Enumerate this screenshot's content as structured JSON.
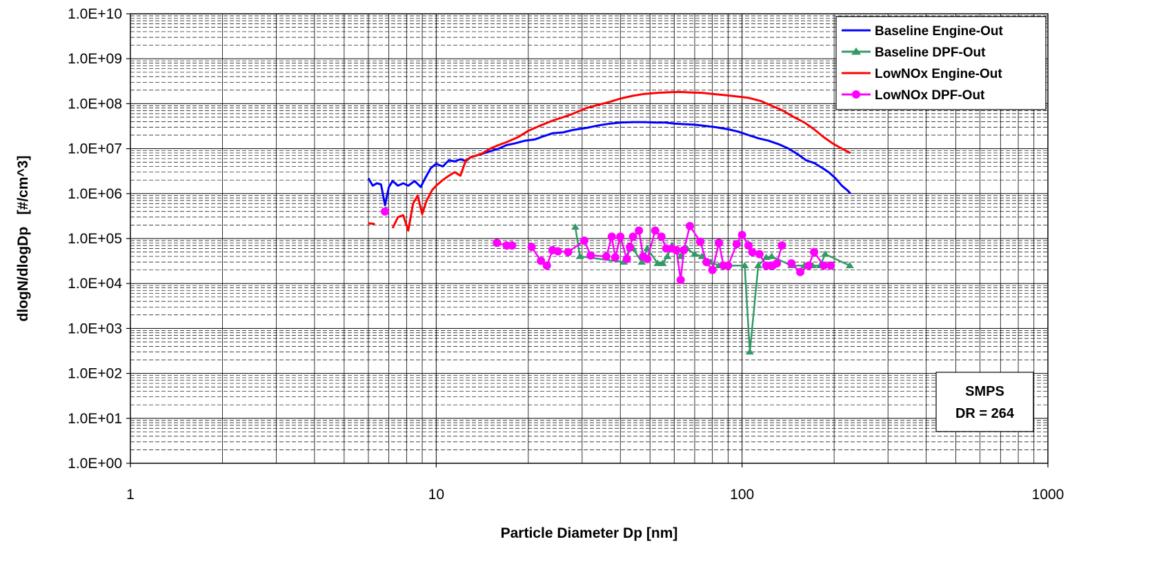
{
  "chart_data": {
    "type": "line",
    "x_scale": "log",
    "y_scale": "log",
    "xlabel": "Particle Diameter Dp [nm]",
    "ylabel": "dlogN/dlogDp   [#/cm^3]",
    "xlim": [
      1,
      1000
    ],
    "ylim": [
      1,
      10000000000
    ],
    "x_ticks": [
      1,
      10,
      100,
      1000
    ],
    "x_tick_labels": [
      "1",
      "10",
      "100",
      "1000"
    ],
    "y_ticks": [
      1,
      10,
      100,
      1000,
      10000,
      100000,
      1000000,
      10000000,
      100000000,
      1000000000,
      10000000000
    ],
    "y_tick_labels": [
      "1.0E+00",
      "1.0E+01",
      "1.0E+02",
      "1.0E+03",
      "1.0E+04",
      "1.0E+05",
      "1.0E+06",
      "1.0E+07",
      "1.0E+08",
      "1.0E+09",
      "1.0E+10"
    ],
    "grid": {
      "major": true,
      "minor_x": true,
      "minor_y_dashed": true
    },
    "legend": {
      "placement": "top-right"
    },
    "annotation": {
      "lines": [
        "SMPS",
        "DR = 264"
      ],
      "placement": "bottom-right"
    },
    "series": [
      {
        "name": "Baseline Engine-Out",
        "color": "#0000ff",
        "marker": "none",
        "points": [
          [
            6.0,
            2200000
          ],
          [
            6.2,
            1500000
          ],
          [
            6.4,
            1700000
          ],
          [
            6.6,
            1600000
          ],
          [
            6.8,
            550000
          ],
          [
            7.0,
            1400000
          ],
          [
            7.2,
            1900000
          ],
          [
            7.5,
            1500000
          ],
          [
            7.8,
            1700000
          ],
          [
            8.1,
            1500000
          ],
          [
            8.5,
            1900000
          ],
          [
            8.9,
            1400000
          ],
          [
            9.2,
            2200000
          ],
          [
            9.6,
            3700000
          ],
          [
            10.0,
            4600000
          ],
          [
            10.5,
            4000000
          ],
          [
            11.0,
            5500000
          ],
          [
            11.5,
            5200000
          ],
          [
            12.0,
            5800000
          ],
          [
            12.5,
            5300000
          ],
          [
            13.0,
            6500000
          ],
          [
            14.0,
            7500000
          ],
          [
            15.0,
            8700000
          ],
          [
            16.0,
            10000000
          ],
          [
            17.0,
            12000000
          ],
          [
            18.0,
            13000000
          ],
          [
            19.5,
            15000000
          ],
          [
            21.0,
            16000000
          ],
          [
            22.5,
            19000000
          ],
          [
            24.0,
            22000000
          ],
          [
            26.0,
            23000000
          ],
          [
            28.0,
            26000000
          ],
          [
            31.0,
            29000000
          ],
          [
            34.0,
            33000000
          ],
          [
            37.0,
            36000000
          ],
          [
            40.0,
            38000000
          ],
          [
            44.0,
            39000000
          ],
          [
            48.0,
            39000000
          ],
          [
            52.0,
            38000000
          ],
          [
            56.0,
            38000000
          ],
          [
            60.0,
            36000000
          ],
          [
            65.0,
            35000000
          ],
          [
            70.0,
            34000000
          ],
          [
            76.0,
            32000000
          ],
          [
            82.0,
            30000000
          ],
          [
            90.0,
            27000000
          ],
          [
            97.0,
            24000000
          ],
          [
            105.0,
            20000000
          ],
          [
            113.0,
            17000000
          ],
          [
            122.0,
            15000000
          ],
          [
            132.0,
            12500000
          ],
          [
            142.0,
            10000000
          ],
          [
            152.0,
            7500000
          ],
          [
            162.0,
            5500000
          ],
          [
            172.0,
            4800000
          ],
          [
            182.0,
            3800000
          ],
          [
            192.0,
            3000000
          ],
          [
            202.0,
            2200000
          ],
          [
            212.0,
            1500000
          ],
          [
            222.0,
            1150000
          ],
          [
            226.0,
            1000000
          ]
        ]
      },
      {
        "name": "Baseline DPF-Out",
        "color": "#339966",
        "marker": "triangle",
        "points": [
          [
            28.5,
            180000
          ],
          [
            29.5,
            40000
          ],
          [
            41.0,
            30000
          ],
          [
            43.0,
            60000
          ],
          [
            44.0,
            60000
          ],
          [
            47.0,
            30000
          ],
          [
            49.0,
            60000
          ],
          [
            53.0,
            28000
          ],
          [
            55.0,
            28000
          ],
          [
            57.0,
            40000
          ],
          [
            59.0,
            70000
          ],
          [
            63.0,
            40000
          ],
          [
            66.0,
            60000
          ],
          [
            70.0,
            45000
          ],
          [
            74.0,
            40000
          ],
          [
            79.0,
            30000
          ],
          [
            84.0,
            25000
          ],
          [
            89.0,
            25000
          ],
          [
            102.0,
            25000
          ],
          [
            106.0,
            300
          ],
          [
            113.0,
            25000
          ],
          [
            120.0,
            38000
          ],
          [
            125.0,
            40000
          ],
          [
            145.0,
            25000
          ],
          [
            160.0,
            25000
          ],
          [
            170.0,
            25000
          ],
          [
            180.0,
            25000
          ],
          [
            187.0,
            45000
          ],
          [
            225.0,
            25000
          ]
        ]
      },
      {
        "name": "LowNOx Engine-Out",
        "color": "#ff0000",
        "marker": "none",
        "segments": [
          [
            [
              6.0,
              220000
            ],
            [
              6.3,
              210000
            ]
          ],
          [
            [
              7.2,
              170000
            ],
            [
              7.5,
              300000
            ],
            [
              7.8,
              330000
            ],
            [
              8.1,
              150000
            ],
            [
              8.4,
              600000
            ],
            [
              8.7,
              900000
            ],
            [
              9.0,
              350000
            ],
            [
              9.3,
              700000
            ],
            [
              9.7,
              1200000
            ],
            [
              10.0,
              1500000
            ],
            [
              10.5,
              2000000
            ],
            [
              11.0,
              2500000
            ],
            [
              11.5,
              3000000
            ],
            [
              12.0,
              2500000
            ],
            [
              12.5,
              5500000
            ],
            [
              13.0,
              6500000
            ],
            [
              14.0,
              7500000
            ],
            [
              15.0,
              10000000
            ],
            [
              16.0,
              12000000
            ],
            [
              17.0,
              14000000
            ],
            [
              18.5,
              18000000
            ],
            [
              20.0,
              25000000
            ],
            [
              22.0,
              33000000
            ],
            [
              24.0,
              42000000
            ],
            [
              26.0,
              50000000
            ],
            [
              28.0,
              60000000
            ],
            [
              31.0,
              80000000
            ],
            [
              34.0,
              95000000
            ],
            [
              37.0,
              110000000
            ],
            [
              40.0,
              130000000
            ],
            [
              44.0,
              150000000
            ],
            [
              48.0,
              165000000
            ],
            [
              53.0,
              175000000
            ],
            [
              58.0,
              180000000
            ],
            [
              63.0,
              182000000
            ],
            [
              68.0,
              178000000
            ],
            [
              74.0,
              175000000
            ],
            [
              80.0,
              165000000
            ],
            [
              88.0,
              155000000
            ],
            [
              96.0,
              145000000
            ],
            [
              105.0,
              135000000
            ],
            [
              115.0,
              115000000
            ],
            [
              125.0,
              90000000
            ],
            [
              136.0,
              70000000
            ],
            [
              148.0,
              50000000
            ],
            [
              160.0,
              38000000
            ],
            [
              172.0,
              27000000
            ],
            [
              185.0,
              18000000
            ],
            [
              198.0,
              13000000
            ],
            [
              212.0,
              10000000
            ],
            [
              222.0,
              8500000
            ],
            [
              226.0,
              8000000
            ]
          ]
        ]
      },
      {
        "name": "LowNOx DPF-Out",
        "color": "#ff00ff",
        "marker": "circle",
        "segments": [
          [
            [
              6.8,
              400000
            ]
          ],
          [
            [
              15.8,
              80000
            ],
            [
              17.0,
              70000
            ],
            [
              17.7,
              70000
            ]
          ],
          [
            [
              20.5,
              65000
            ],
            [
              22.0,
              32000
            ],
            [
              23.0,
              25000
            ],
            [
              24.0,
              55000
            ],
            [
              25.0,
              52000
            ],
            [
              27.0,
              50000
            ],
            [
              30.5,
              90000
            ],
            [
              32.0,
              42000
            ],
            [
              36.0,
              40000
            ],
            [
              37.5,
              110000
            ],
            [
              38.5,
              38000
            ],
            [
              40.0,
              110000
            ],
            [
              42.0,
              35000
            ],
            [
              43.0,
              65000
            ],
            [
              44.0,
              110000
            ],
            [
              46.0,
              150000
            ],
            [
              47.5,
              40000
            ],
            [
              49.0,
              35000
            ],
            [
              52.0,
              150000
            ],
            [
              54.5,
              110000
            ],
            [
              56.5,
              60000
            ],
            [
              59.0,
              60000
            ],
            [
              61.0,
              55000
            ],
            [
              63.0,
              12000
            ],
            [
              64.5,
              55000
            ],
            [
              67.5,
              190000
            ],
            [
              73.0,
              85000
            ],
            [
              76.5,
              30000
            ],
            [
              80.0,
              20000
            ],
            [
              84.0,
              80000
            ],
            [
              87.0,
              25000
            ],
            [
              90.0,
              25000
            ],
            [
              96.0,
              75000
            ],
            [
              100.0,
              120000
            ],
            [
              105.0,
              70000
            ],
            [
              108.0,
              50000
            ],
            [
              114.0,
              45000
            ],
            [
              120.0,
              25000
            ],
            [
              124.0,
              25000
            ],
            [
              126.0,
              25000
            ],
            [
              130.0,
              28000
            ],
            [
              135.0,
              70000
            ]
          ],
          [
            [
              145.0,
              28000
            ],
            [
              155.0,
              18000
            ],
            [
              165.0,
              25000
            ],
            [
              172.0,
              50000
            ],
            [
              185.0,
              25000
            ],
            [
              195.0,
              25000
            ]
          ]
        ]
      }
    ]
  }
}
